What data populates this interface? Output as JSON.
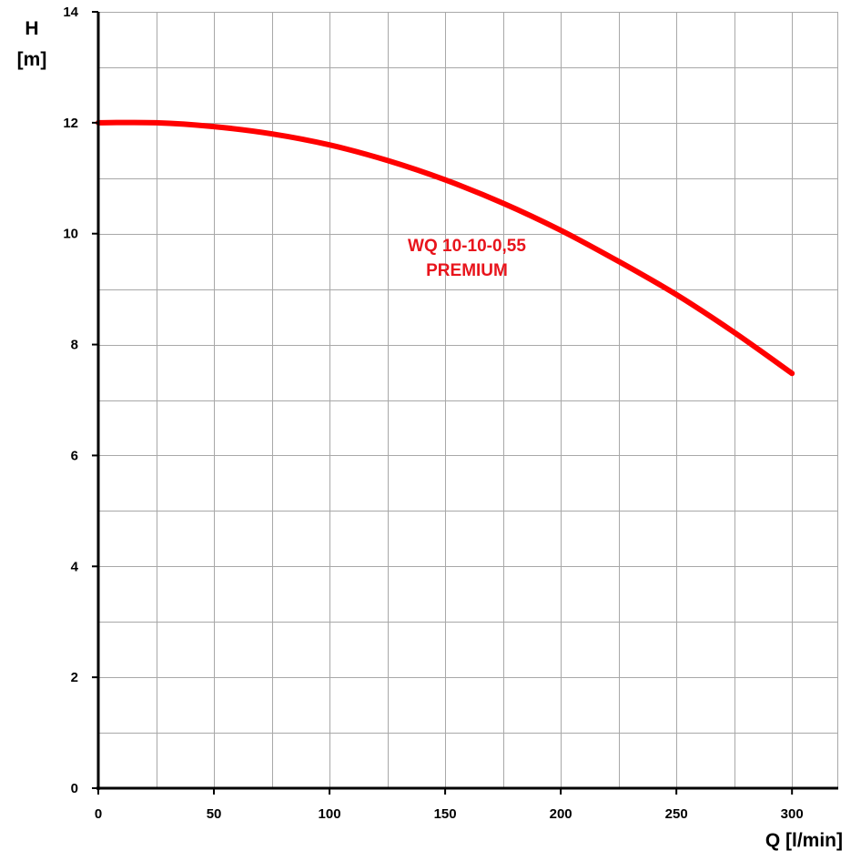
{
  "chart_data": {
    "type": "line",
    "title": "",
    "xlabel": "Q [l/min]",
    "ylabel_line1": "H",
    "ylabel_line2": "[m]",
    "xlim": [
      0,
      320
    ],
    "ylim": [
      0,
      14
    ],
    "x_ticks": [
      0,
      50,
      100,
      150,
      200,
      250,
      300
    ],
    "y_ticks": [
      0,
      2,
      4,
      6,
      8,
      10,
      12,
      14
    ],
    "grid": true,
    "series": [
      {
        "name": "WQ 10-10-0,55 PREMIUM",
        "color": "#ff0000",
        "x": [
          0,
          25,
          50,
          75,
          100,
          125,
          150,
          175,
          200,
          225,
          250,
          275,
          300
        ],
        "y": [
          12.0,
          12.0,
          11.93,
          11.8,
          11.6,
          11.32,
          10.97,
          10.55,
          10.06,
          9.5,
          8.9,
          8.22,
          7.48
        ]
      }
    ],
    "annotation": {
      "line1": "WQ 10-10-0,55",
      "line2": "PREMIUM",
      "color": "#e8141c"
    }
  }
}
